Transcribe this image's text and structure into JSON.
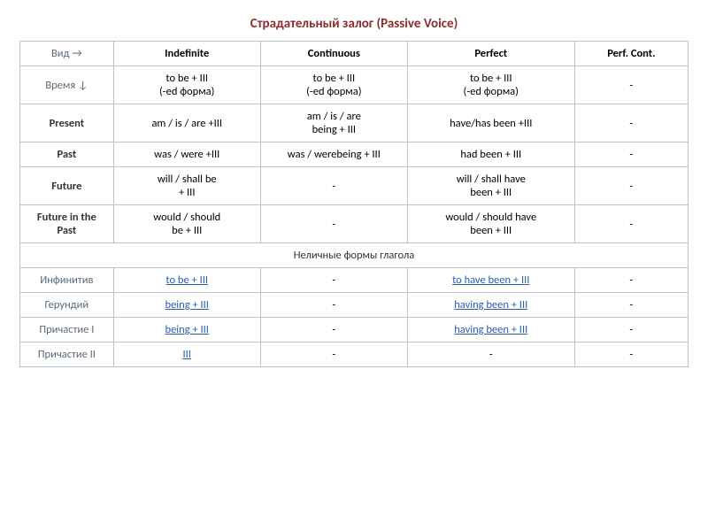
{
  "title_text": "Страдательный  залог  (Passive  Voice)",
  "title_color": "#8b2e2e",
  "header": {
    "aspect_label": "Вид →",
    "tense_label": "Время ↓",
    "cols": [
      "Indefinite",
      "Continuous",
      "Perfect",
      "Perf. Cont."
    ]
  },
  "formula_row": {
    "c1": "to be  +  III\n(-ed форма)",
    "c2": "to be  +  III\n(-ed форма)",
    "c3": "to be  +  III\n(-ed форма)",
    "c4": "-"
  },
  "rows": [
    {
      "label": "Present",
      "c1": "am / is / are +III",
      "c2": "am / is / are\nbeing + III",
      "c3": "have/has  been +III",
      "c4": "-"
    },
    {
      "label": "Past",
      "c1": "was / were +III",
      "c2": "was / werebeing + III",
      "c3": "had been + III",
      "c4": "-"
    },
    {
      "label": "Future",
      "c1": "will / shall  be\n+ III",
      "c2": "-",
      "c3": "will / shall have\nbeen + III",
      "c4": "-"
    },
    {
      "label": "Future in the\nPast",
      "c1": "would / should\nbe + III",
      "c2": "-",
      "c3": "would / should have\nbeen + III",
      "c4": "-"
    }
  ],
  "section_label": "Неличные  формы  глагола",
  "nonfinite": [
    {
      "label": "Инфинитив",
      "c1": "to be + III",
      "c2": "-",
      "c3": "to have been + III",
      "c4": "-",
      "link1": true,
      "link3": true
    },
    {
      "label": "Герундий",
      "c1": "being + III",
      "c2": "-",
      "c3": "having been + III",
      "c4": "-",
      "link1": true,
      "link3": true
    },
    {
      "label": "Причастие I",
      "c1": "being + III",
      "c2": "-",
      "c3": "having been + III",
      "c4": "-",
      "link1": true,
      "link3": true
    },
    {
      "label": "Причастие II",
      "c1": " III",
      "c2": "-",
      "c3": "-",
      "c4": "-",
      "link1": true,
      "link3": false
    }
  ],
  "colors": {
    "border": "#b8c4d4",
    "text": "#333333",
    "muted": "#5a6a7a",
    "link": "#2a5db0"
  }
}
